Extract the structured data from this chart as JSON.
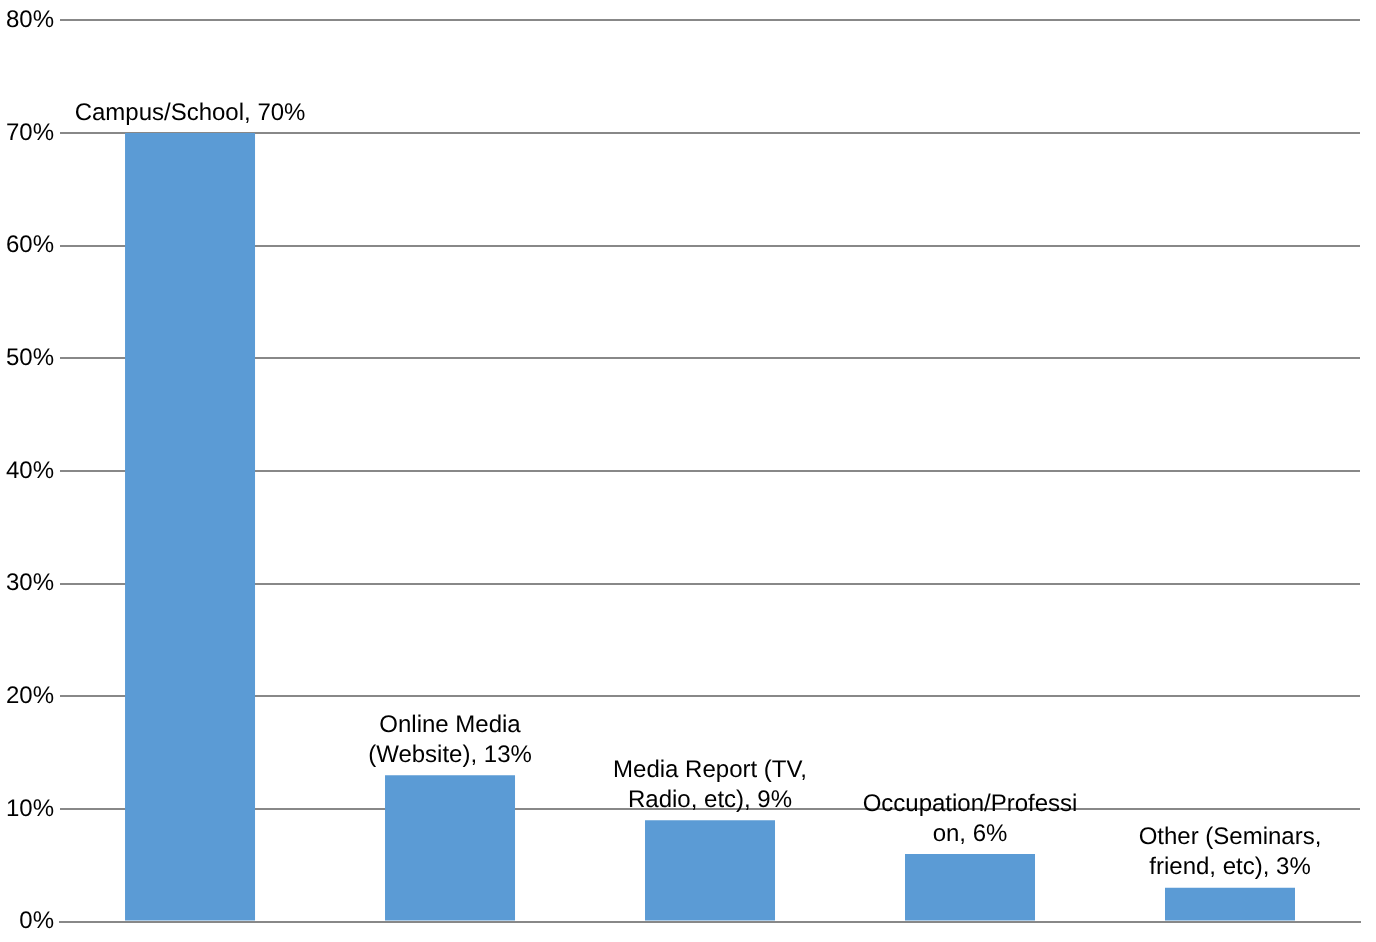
{
  "chart_data": {
    "type": "bar",
    "categories": [
      null,
      null,
      null,
      null,
      null
    ],
    "values": [
      70,
      13,
      9,
      6,
      3
    ],
    "value_labels": [
      "Campus/School, 70%",
      "Online Media (Website), 13%",
      "Media Report (TV, Radio, etc), 9%",
      "Occupation/Professi on, 6%",
      "Other (Seminars, friend, etc), 3%"
    ],
    "color": "#5b9bd5",
    "ylim": [
      0,
      80
    ],
    "yticks": [
      {
        "value": 0,
        "label": "0%"
      },
      {
        "value": 10,
        "label": "10%"
      },
      {
        "value": 20,
        "label": "20%"
      },
      {
        "value": 30,
        "label": "30%"
      },
      {
        "value": 40,
        "label": "40%"
      },
      {
        "value": 50,
        "label": "50%"
      },
      {
        "value": 60,
        "label": "60%"
      },
      {
        "value": 70,
        "label": "70%"
      },
      {
        "value": 80,
        "label": "80%"
      }
    ],
    "grid": "y",
    "tick_labels": "y",
    "legend": false
  }
}
